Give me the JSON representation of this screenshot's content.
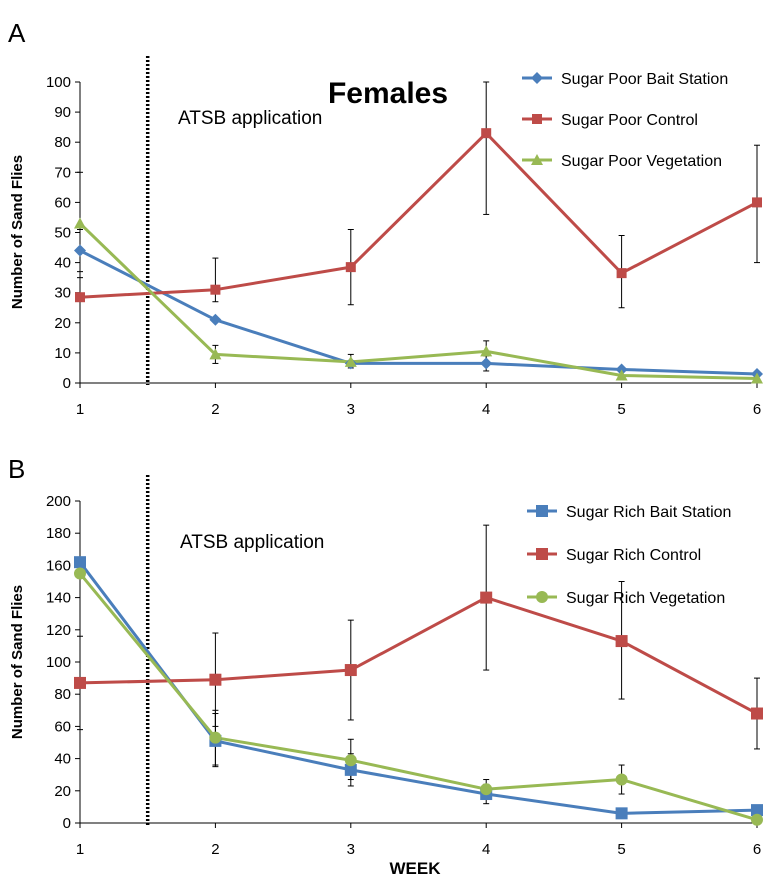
{
  "panels": [
    {
      "letter": "A",
      "title": "Females",
      "annotation": "ATSB application",
      "ylabel": "Number of Sand Flies"
    },
    {
      "letter": "B",
      "title": "",
      "annotation": "ATSB application",
      "ylabel": "Number of Sand Flies"
    }
  ],
  "xlabel": "WEEK",
  "colors": {
    "blue": "#4a7ebb",
    "red": "#be4b48",
    "green": "#98b954"
  },
  "chart_data": [
    {
      "type": "line",
      "title": "Females",
      "xlabel": "",
      "ylabel": "Number of Sand Flies",
      "x": [
        1,
        2,
        3,
        4,
        5,
        6
      ],
      "ylim": [
        0,
        100
      ],
      "yticks": [
        0,
        10,
        20,
        30,
        40,
        50,
        60,
        70,
        80,
        90,
        100
      ],
      "xticks": [
        1,
        2,
        3,
        4,
        5,
        6
      ],
      "application_line_x": 1.5,
      "legend_position": "top-right",
      "series": [
        {
          "name": "Sugar Poor Bait Station",
          "color": "#4a7ebb",
          "marker": "diamond",
          "values": [
            44,
            21,
            6.5,
            6.5,
            4.5,
            3
          ],
          "errors": [
            [
              37,
              51
            ],
            [
              null,
              null
            ],
            [
              null,
              null
            ],
            [
              4,
              9
            ],
            [
              null,
              null
            ],
            [
              null,
              null
            ]
          ]
        },
        {
          "name": "Sugar Poor Control",
          "color": "#be4b48",
          "marker": "square",
          "values": [
            28.5,
            31,
            38.5,
            83,
            36.5,
            60
          ],
          "errors": [
            [
              null,
              null
            ],
            [
              27,
              41.5
            ],
            [
              26,
              51
            ],
            [
              56,
              100
            ],
            [
              25,
              49
            ],
            [
              40,
              79
            ]
          ]
        },
        {
          "name": "Sugar Poor Vegetation",
          "color": "#98b954",
          "marker": "triangle",
          "values": [
            53,
            9.5,
            7,
            10.5,
            2.5,
            1.5
          ],
          "errors": [
            [
              35,
              70
            ],
            [
              6.5,
              12.5
            ],
            [
              5,
              9.5
            ],
            [
              7,
              14
            ],
            [
              null,
              null
            ],
            [
              null,
              null
            ]
          ]
        }
      ]
    },
    {
      "type": "line",
      "title": "",
      "xlabel": "WEEK",
      "ylabel": "Number of Sand Flies",
      "x": [
        1,
        2,
        3,
        4,
        5,
        6
      ],
      "ylim": [
        0,
        200
      ],
      "yticks": [
        0,
        20,
        40,
        60,
        80,
        100,
        120,
        140,
        160,
        180,
        200
      ],
      "xticks": [
        1,
        2,
        3,
        4,
        5,
        6
      ],
      "application_line_x": 1.5,
      "legend_position": "top-right",
      "series": [
        {
          "name": "Sugar Rich Bait Station",
          "color": "#4a7ebb",
          "marker": "square",
          "values": [
            162,
            51,
            33,
            18,
            6,
            8
          ],
          "errors": [
            [
              null,
              null
            ],
            [
              35,
              68
            ],
            [
              23,
              43
            ],
            [
              12,
              24
            ],
            [
              null,
              null
            ],
            [
              null,
              null
            ]
          ]
        },
        {
          "name": "Sugar Rich Control",
          "color": "#be4b48",
          "marker": "square",
          "values": [
            87,
            89,
            95,
            140,
            113,
            68
          ],
          "errors": [
            [
              58,
              116
            ],
            [
              60,
              118
            ],
            [
              64,
              126
            ],
            [
              95,
              185
            ],
            [
              77,
              150
            ],
            [
              46,
              90
            ]
          ]
        },
        {
          "name": "Sugar Rich Vegetation",
          "color": "#98b954",
          "marker": "circle",
          "values": [
            155,
            53,
            39,
            21,
            27,
            2
          ],
          "errors": [
            [
              null,
              null
            ],
            [
              36,
              70
            ],
            [
              27,
              52
            ],
            [
              15,
              27
            ],
            [
              18,
              36
            ],
            [
              null,
              null
            ]
          ]
        }
      ]
    }
  ]
}
